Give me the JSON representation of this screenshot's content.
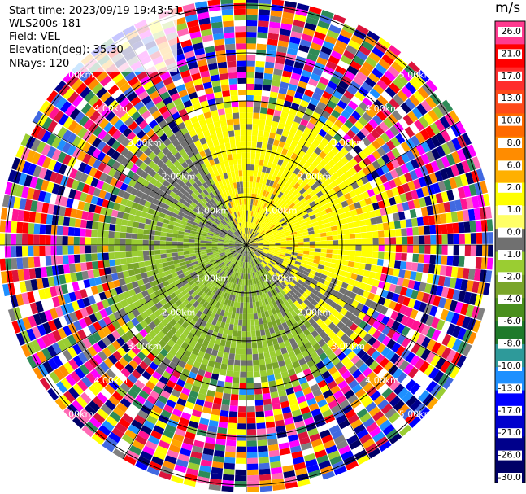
{
  "info": {
    "start_time": "Start time: 2023/09/19 19:43:51",
    "instrument": "WLS200s-181",
    "field": "Field: VEL",
    "elevation": "Elevation(deg): 35.30",
    "nrays": "NRays: 120"
  },
  "colorbar": {
    "unit": "m/s",
    "ticks": [
      "26.0",
      "21.0",
      "17.0",
      "13.0",
      "10.0",
      "8.0",
      "6.0",
      "2.0",
      "1.0",
      "0.0",
      "-1.0",
      "-2.0",
      "-4.0",
      "-6.0",
      "-8.0",
      "-10.0",
      "-13.0",
      "-17.0",
      "-21.0",
      "-26.0",
      "-30.0"
    ],
    "colors": [
      "#ff3b8f",
      "#ff0000",
      "#ff2d2d",
      "#ff4a1a",
      "#ff6a00",
      "#ff8c00",
      "#ffb000",
      "#ffff00",
      "#ffff66",
      "#707070",
      "#9acd32",
      "#7aa52a",
      "#4a8f1e",
      "#1f7a2a",
      "#2e9a9a",
      "#1e90ff",
      "#0000ff",
      "#0000cd",
      "#00008b",
      "#000066"
    ]
  },
  "chart_data": {
    "type": "ppi",
    "field": "VEL",
    "units": "m/s",
    "rings_km": [
      1.0,
      2.0,
      3.0,
      4.0,
      5.0
    ],
    "ring_labels": [
      "1.00km",
      "2.00km",
      "3.00km",
      "4.00km",
      "5.00km"
    ],
    "nrays": 120,
    "vmin": -30.0,
    "vmax": 26.0
  }
}
